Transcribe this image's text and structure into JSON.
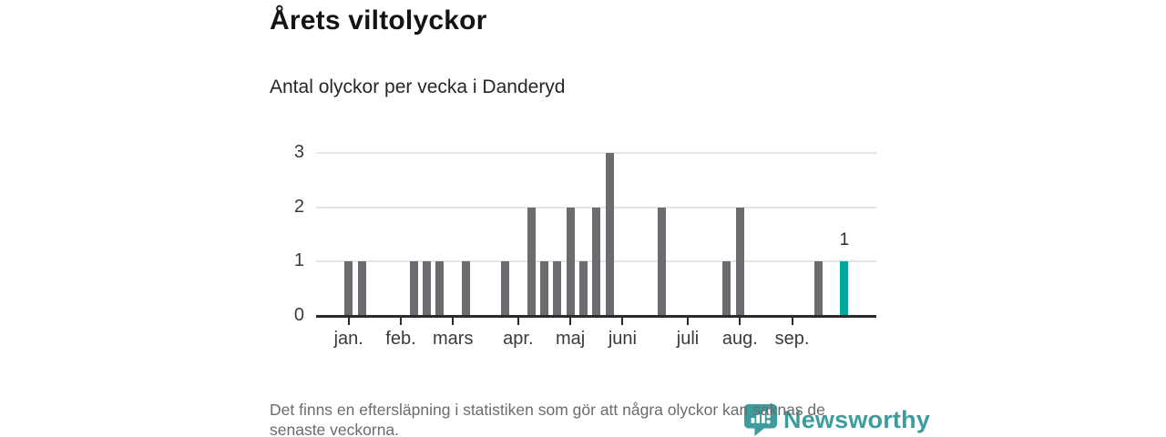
{
  "header": {
    "title": "Årets viltolyckor",
    "subtitle": "Antal olyckor per vecka i Danderyd"
  },
  "chart_data": {
    "type": "bar",
    "title": "Årets viltolyckor",
    "subtitle": "Antal olyckor per vecka i Danderyd",
    "ylabel": "Antal olyckor per vecka",
    "xlabel": "",
    "ylim": [
      0,
      3
    ],
    "grid": true,
    "y_ticks": [
      0,
      1,
      2,
      3
    ],
    "categories_desc": "veckor, januari till september",
    "weeks": [
      1,
      1,
      0,
      0,
      0,
      1,
      1,
      1,
      0,
      1,
      0,
      0,
      1,
      0,
      2,
      1,
      1,
      2,
      1,
      2,
      3,
      0,
      0,
      0,
      2,
      0,
      0,
      0,
      0,
      1,
      2,
      0,
      0,
      0,
      0,
      0,
      1,
      0,
      1
    ],
    "month_ticks": [
      {
        "label": "jan.",
        "slot": 0
      },
      {
        "label": "feb.",
        "slot": 4
      },
      {
        "label": "mars",
        "slot": 8
      },
      {
        "label": "apr.",
        "slot": 13
      },
      {
        "label": "maj",
        "slot": 17
      },
      {
        "label": "juni",
        "slot": 21
      },
      {
        "label": "juli",
        "slot": 26
      },
      {
        "label": "aug.",
        "slot": 30
      },
      {
        "label": "sep.",
        "slot": 34
      }
    ],
    "highlight_index": 38,
    "highlight_label": "1",
    "colors": {
      "bar": "#6b6b70",
      "highlight": "#00a79d",
      "axis": "#2b2b2b",
      "grid": "#e4e4e4",
      "tick_text": "#3a3a3a"
    }
  },
  "footer": {
    "line1": "Det finns en eftersläpning i statistiken som gör att några olyckor kan saknas de",
    "line2": "senaste veckorna."
  },
  "logo": {
    "text": "Newsworthy",
    "icon": "newsworthy-speech-bubble-chart-icon",
    "color": "#3d9d9e"
  }
}
